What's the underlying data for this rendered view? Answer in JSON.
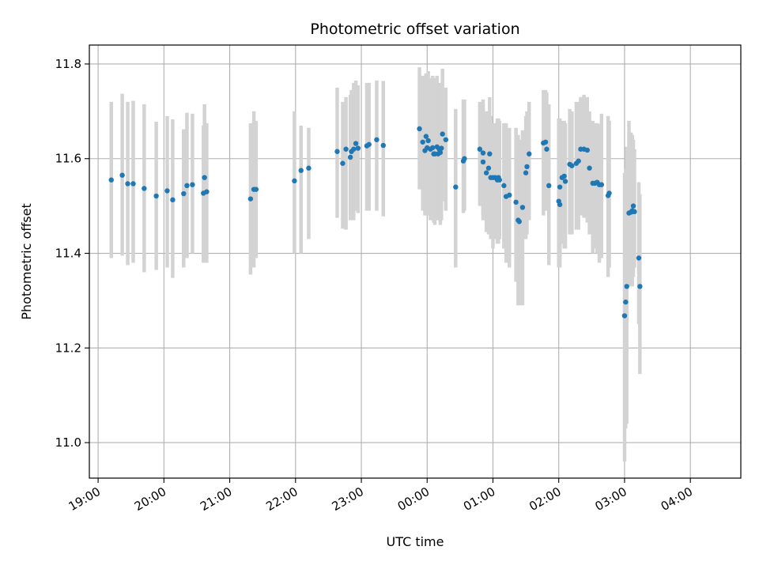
{
  "chart_data": {
    "type": "scatter",
    "title": "Photometric offset variation",
    "xlabel": "UTC time",
    "ylabel": "Photometric offset",
    "x_unit": "UTC time (HH:MM)",
    "x_ticks": [
      "19:00",
      "20:00",
      "21:00",
      "22:00",
      "23:00",
      "00:00",
      "01:00",
      "02:00",
      "03:00",
      "04:00"
    ],
    "y_ticks": [
      "11.0",
      "11.2",
      "11.4",
      "11.6",
      "11.8"
    ],
    "ylim": [
      10.925,
      11.84
    ],
    "xlim": [
      "18:52",
      "04:46"
    ],
    "grid": true,
    "legend": "none",
    "colors": {
      "points": "#1f77b4",
      "errorbars": "#d3d3d3",
      "grid": "#b0b0b0"
    },
    "series": [
      {
        "points": [
          [
            "19:12",
            11.555,
            11.39,
            11.72
          ],
          [
            "19:22",
            11.565,
            11.395,
            11.737
          ],
          [
            "19:27",
            11.547,
            11.375,
            11.72
          ],
          [
            "19:32",
            11.547,
            11.38,
            11.722
          ],
          [
            "19:42",
            11.537,
            11.36,
            11.715
          ],
          [
            "19:53",
            11.521,
            11.365,
            11.678
          ],
          [
            "20:03",
            11.532,
            11.37,
            11.69
          ],
          [
            "20:08",
            11.513,
            11.348,
            11.683
          ],
          [
            "20:18",
            11.526,
            11.37,
            11.662
          ],
          [
            "20:21",
            11.543,
            11.39,
            11.697
          ],
          [
            "20:26",
            11.545,
            11.4,
            11.695
          ],
          [
            "20:36",
            11.527,
            11.38,
            11.67
          ],
          [
            "20:37",
            11.56,
            11.44,
            11.715
          ],
          [
            "20:39",
            11.53,
            11.38,
            11.675
          ],
          [
            "21:19",
            11.515,
            11.355,
            11.675
          ],
          [
            "21:22",
            11.535,
            11.37,
            11.7
          ],
          [
            "21:24",
            11.535,
            11.39,
            11.68
          ],
          [
            "21:59",
            11.553,
            11.4,
            11.7
          ],
          [
            "22:05",
            11.575,
            11.4,
            11.67
          ],
          [
            "22:12",
            11.58,
            11.43,
            11.665
          ],
          [
            "22:38",
            11.615,
            11.475,
            11.75
          ],
          [
            "22:43",
            11.59,
            11.452,
            11.72
          ],
          [
            "22:46",
            11.62,
            11.45,
            11.73
          ],
          [
            "22:50",
            11.603,
            11.47,
            11.735
          ],
          [
            "22:51",
            11.615,
            11.47,
            11.745
          ],
          [
            "22:53",
            11.62,
            11.47,
            11.76
          ],
          [
            "22:55",
            11.632,
            11.49,
            11.765
          ],
          [
            "22:57",
            11.622,
            11.485,
            11.755
          ],
          [
            "23:05",
            11.627,
            11.49,
            11.76
          ],
          [
            "23:07",
            11.63,
            11.49,
            11.76
          ],
          [
            "23:14",
            11.64,
            11.49,
            11.765
          ],
          [
            "23:20",
            11.628,
            11.478,
            11.764
          ],
          [
            "23:53",
            11.663,
            11.535,
            11.793
          ],
          [
            "23:56",
            11.635,
            11.49,
            11.775
          ],
          [
            "23:58",
            11.617,
            11.48,
            11.765
          ],
          [
            "23:59",
            11.647,
            11.5,
            11.78
          ],
          [
            "00:00",
            11.623,
            11.48,
            11.765
          ],
          [
            "00:01",
            11.638,
            11.49,
            11.785
          ],
          [
            "00:03",
            11.62,
            11.47,
            11.77
          ],
          [
            "00:05",
            11.623,
            11.475,
            11.775
          ],
          [
            "00:06",
            11.61,
            11.465,
            11.755
          ],
          [
            "00:07",
            11.61,
            11.46,
            11.77
          ],
          [
            "00:09",
            11.625,
            11.475,
            11.775
          ],
          [
            "00:10",
            11.61,
            11.47,
            11.755
          ],
          [
            "00:11",
            11.62,
            11.47,
            11.755
          ],
          [
            "00:12",
            11.613,
            11.46,
            11.76
          ],
          [
            "00:13",
            11.622,
            11.47,
            11.75
          ],
          [
            "00:14",
            11.652,
            11.51,
            11.79
          ],
          [
            "00:17",
            11.64,
            11.49,
            11.75
          ],
          [
            "00:26",
            11.54,
            11.37,
            11.705
          ],
          [
            "00:33",
            11.595,
            11.485,
            11.725
          ],
          [
            "00:34",
            11.6,
            11.49,
            11.725
          ],
          [
            "00:48",
            11.62,
            11.5,
            11.72
          ],
          [
            "00:51",
            11.612,
            11.47,
            11.725
          ],
          [
            "00:51",
            11.593,
            11.48,
            11.715
          ],
          [
            "00:54",
            11.57,
            11.445,
            11.7
          ],
          [
            "00:56",
            11.58,
            11.44,
            11.685
          ],
          [
            "00:57",
            11.61,
            11.47,
            11.73
          ],
          [
            "00:58",
            11.56,
            11.43,
            11.69
          ],
          [
            "01:00",
            11.56,
            11.41,
            11.675
          ],
          [
            "01:02",
            11.56,
            11.43,
            11.675
          ],
          [
            "01:04",
            11.555,
            11.42,
            11.685
          ],
          [
            "01:05",
            11.56,
            11.42,
            11.685
          ],
          [
            "01:06",
            11.555,
            11.43,
            11.68
          ],
          [
            "01:10",
            11.543,
            11.41,
            11.675
          ],
          [
            "01:12",
            11.52,
            11.38,
            11.675
          ],
          [
            "01:15",
            11.523,
            11.37,
            11.665
          ],
          [
            "01:21",
            11.508,
            11.34,
            11.665
          ],
          [
            "01:23",
            11.47,
            11.29,
            11.65
          ],
          [
            "01:24",
            11.467,
            11.29,
            11.64
          ],
          [
            "01:27",
            11.497,
            11.29,
            11.66
          ],
          [
            "01:30",
            11.57,
            11.43,
            11.69
          ],
          [
            "01:31",
            11.583,
            11.44,
            11.7
          ],
          [
            "01:33",
            11.61,
            11.47,
            11.72
          ],
          [
            "01:46",
            11.633,
            11.48,
            11.745
          ],
          [
            "01:48",
            11.635,
            11.49,
            11.745
          ],
          [
            "01:49",
            11.62,
            11.49,
            11.74
          ],
          [
            "01:51",
            11.543,
            11.375,
            11.715
          ],
          [
            "02:00",
            11.51,
            11.37,
            11.685
          ],
          [
            "02:01",
            11.54,
            11.39,
            11.685
          ],
          [
            "02:01",
            11.503,
            11.37,
            11.65
          ],
          [
            "02:03",
            11.56,
            11.42,
            11.68
          ],
          [
            "02:05",
            11.563,
            11.41,
            11.68
          ],
          [
            "02:06",
            11.552,
            11.41,
            11.675
          ],
          [
            "02:10",
            11.588,
            11.44,
            11.705
          ],
          [
            "02:12",
            11.585,
            11.44,
            11.7
          ],
          [
            "02:16",
            11.59,
            11.45,
            11.72
          ],
          [
            "02:18",
            11.595,
            11.45,
            11.72
          ],
          [
            "02:20",
            11.62,
            11.48,
            11.73
          ],
          [
            "02:23",
            11.62,
            11.475,
            11.735
          ],
          [
            "02:26",
            11.618,
            11.465,
            11.73
          ],
          [
            "02:28",
            11.58,
            11.44,
            11.7
          ],
          [
            "02:31",
            11.548,
            11.4,
            11.68
          ],
          [
            "02:33",
            11.548,
            11.41,
            11.675
          ],
          [
            "02:35",
            11.55,
            11.4,
            11.675
          ],
          [
            "02:37",
            11.545,
            11.38,
            11.673
          ],
          [
            "02:39",
            11.545,
            11.39,
            11.695
          ],
          [
            "02:45",
            11.522,
            11.35,
            11.69
          ],
          [
            "02:46",
            11.527,
            11.37,
            11.68
          ],
          [
            "03:00",
            11.268,
            10.96,
            11.57
          ],
          [
            "03:01",
            11.297,
            11.03,
            11.58
          ],
          [
            "03:02",
            11.33,
            11.04,
            11.625
          ],
          [
            "03:04",
            11.485,
            11.33,
            11.68
          ],
          [
            "03:06",
            11.487,
            11.35,
            11.655
          ],
          [
            "03:07",
            11.49,
            11.33,
            11.65
          ],
          [
            "03:08",
            11.5,
            11.35,
            11.64
          ],
          [
            "03:09",
            11.488,
            11.37,
            11.62
          ],
          [
            "03:13",
            11.39,
            11.25,
            11.55
          ],
          [
            "03:14",
            11.33,
            11.145,
            11.525
          ]
        ]
      }
    ]
  }
}
